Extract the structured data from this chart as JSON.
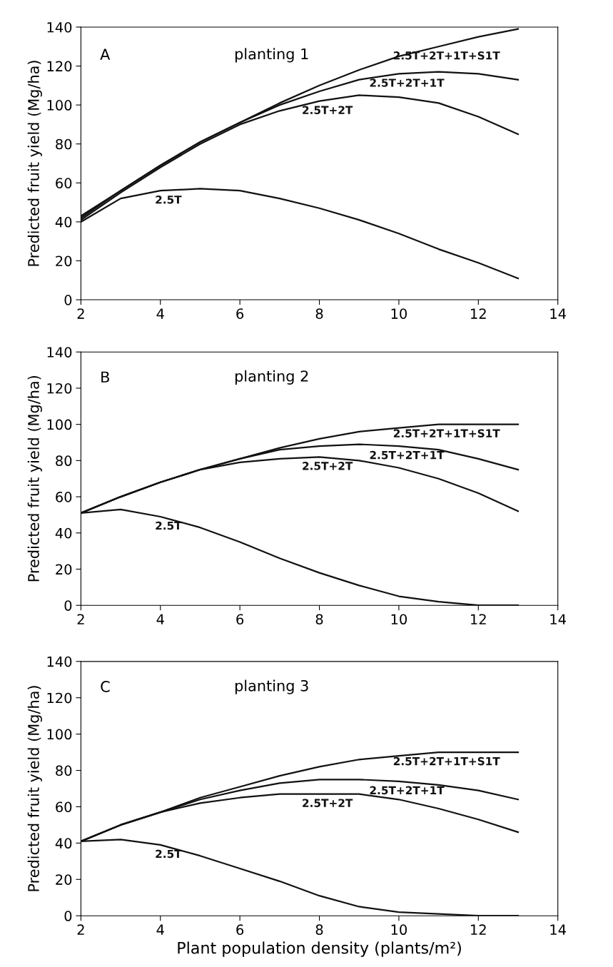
{
  "chart_data": [
    {
      "type": "line",
      "title": "planting 1",
      "ylabel": "Predicted fruit yield (Mg/ha)",
      "annotations": [
        "A"
      ],
      "x": [
        2,
        3,
        4,
        5,
        6,
        7,
        8,
        9,
        10,
        11,
        12,
        13
      ],
      "series": [
        {
          "name": "2.5T+2T+1T+S1T",
          "color": "#111111",
          "values": [
            43,
            56,
            69,
            81,
            91,
            101,
            110,
            118,
            125,
            130,
            135,
            139
          ]
        },
        {
          "name": "2.5T+2T+1T",
          "color": "#111111",
          "values": [
            42,
            56,
            69,
            81,
            91,
            100,
            107,
            113,
            116,
            117,
            116,
            113
          ]
        },
        {
          "name": "2.5T+2T",
          "color": "#111111",
          "values": [
            41,
            55,
            68,
            80,
            90,
            97,
            102,
            105,
            104,
            101,
            94,
            85
          ]
        },
        {
          "name": "2.5T",
          "color": "#111111",
          "values": [
            40,
            52,
            56,
            57,
            56,
            52,
            47,
            41,
            34,
            26,
            19,
            11
          ]
        }
      ],
      "xlim": [
        2,
        14
      ],
      "ylim": [
        0,
        140
      ],
      "xticks": [
        2,
        4,
        6,
        8,
        10,
        12,
        14
      ],
      "yticks": [
        0,
        20,
        40,
        60,
        80,
        100,
        120,
        140
      ],
      "grid": false,
      "legend": false,
      "marker": "none",
      "line_style": "solid"
    },
    {
      "type": "line",
      "title": "planting 2",
      "ylabel": "Predicted fruit yield (Mg/ha)",
      "annotations": [
        "B"
      ],
      "x": [
        2,
        3,
        4,
        5,
        6,
        7,
        8,
        9,
        10,
        11,
        12,
        13
      ],
      "series": [
        {
          "name": "2.5T+2T+1T+S1T",
          "color": "#111111",
          "values": [
            51,
            60,
            68,
            75,
            81,
            87,
            92,
            96,
            98,
            100,
            100,
            100
          ]
        },
        {
          "name": "2.5T+2T+1T",
          "color": "#111111",
          "values": [
            51,
            60,
            68,
            75,
            81,
            86,
            88,
            89,
            88,
            86,
            81,
            75
          ]
        },
        {
          "name": "2.5T+2T",
          "color": "#111111",
          "values": [
            51,
            60,
            68,
            75,
            79,
            81,
            82,
            80,
            76,
            70,
            62,
            52
          ]
        },
        {
          "name": "2.5T",
          "color": "#111111",
          "values": [
            51,
            53,
            49,
            43,
            35,
            26,
            18,
            11,
            5,
            2,
            0,
            0
          ]
        }
      ],
      "xlim": [
        2,
        14
      ],
      "ylim": [
        0,
        140
      ],
      "xticks": [
        2,
        4,
        6,
        8,
        10,
        12,
        14
      ],
      "yticks": [
        0,
        20,
        40,
        60,
        80,
        100,
        120,
        140
      ],
      "grid": false,
      "legend": false,
      "marker": "none",
      "line_style": "solid"
    },
    {
      "type": "line",
      "title": "planting 3",
      "xlabel": "Plant population density (plants/m²)",
      "ylabel": "Predicted fruit yield (Mg/ha)",
      "annotations": [
        "C"
      ],
      "x": [
        2,
        3,
        4,
        5,
        6,
        7,
        8,
        9,
        10,
        11,
        12,
        13
      ],
      "series": [
        {
          "name": "2.5T+2T+1T+S1T",
          "color": "#111111",
          "values": [
            41,
            50,
            57,
            65,
            71,
            77,
            82,
            86,
            88,
            90,
            90,
            90
          ]
        },
        {
          "name": "2.5T+2T+1T",
          "color": "#111111",
          "values": [
            41,
            50,
            57,
            64,
            69,
            73,
            75,
            75,
            74,
            72,
            69,
            64
          ]
        },
        {
          "name": "2.5T+2T",
          "color": "#111111",
          "values": [
            41,
            50,
            57,
            62,
            65,
            67,
            67,
            67,
            64,
            59,
            53,
            46
          ]
        },
        {
          "name": "2.5T",
          "color": "#111111",
          "values": [
            41,
            42,
            39,
            33,
            26,
            19,
            11,
            5,
            2,
            1,
            0,
            0
          ]
        }
      ],
      "xlim": [
        2,
        14
      ],
      "ylim": [
        0,
        140
      ],
      "xticks": [
        2,
        4,
        6,
        8,
        10,
        12,
        14
      ],
      "yticks": [
        0,
        20,
        40,
        60,
        80,
        100,
        120,
        140
      ],
      "grid": false,
      "legend": false,
      "marker": "none",
      "line_style": "solid"
    }
  ]
}
